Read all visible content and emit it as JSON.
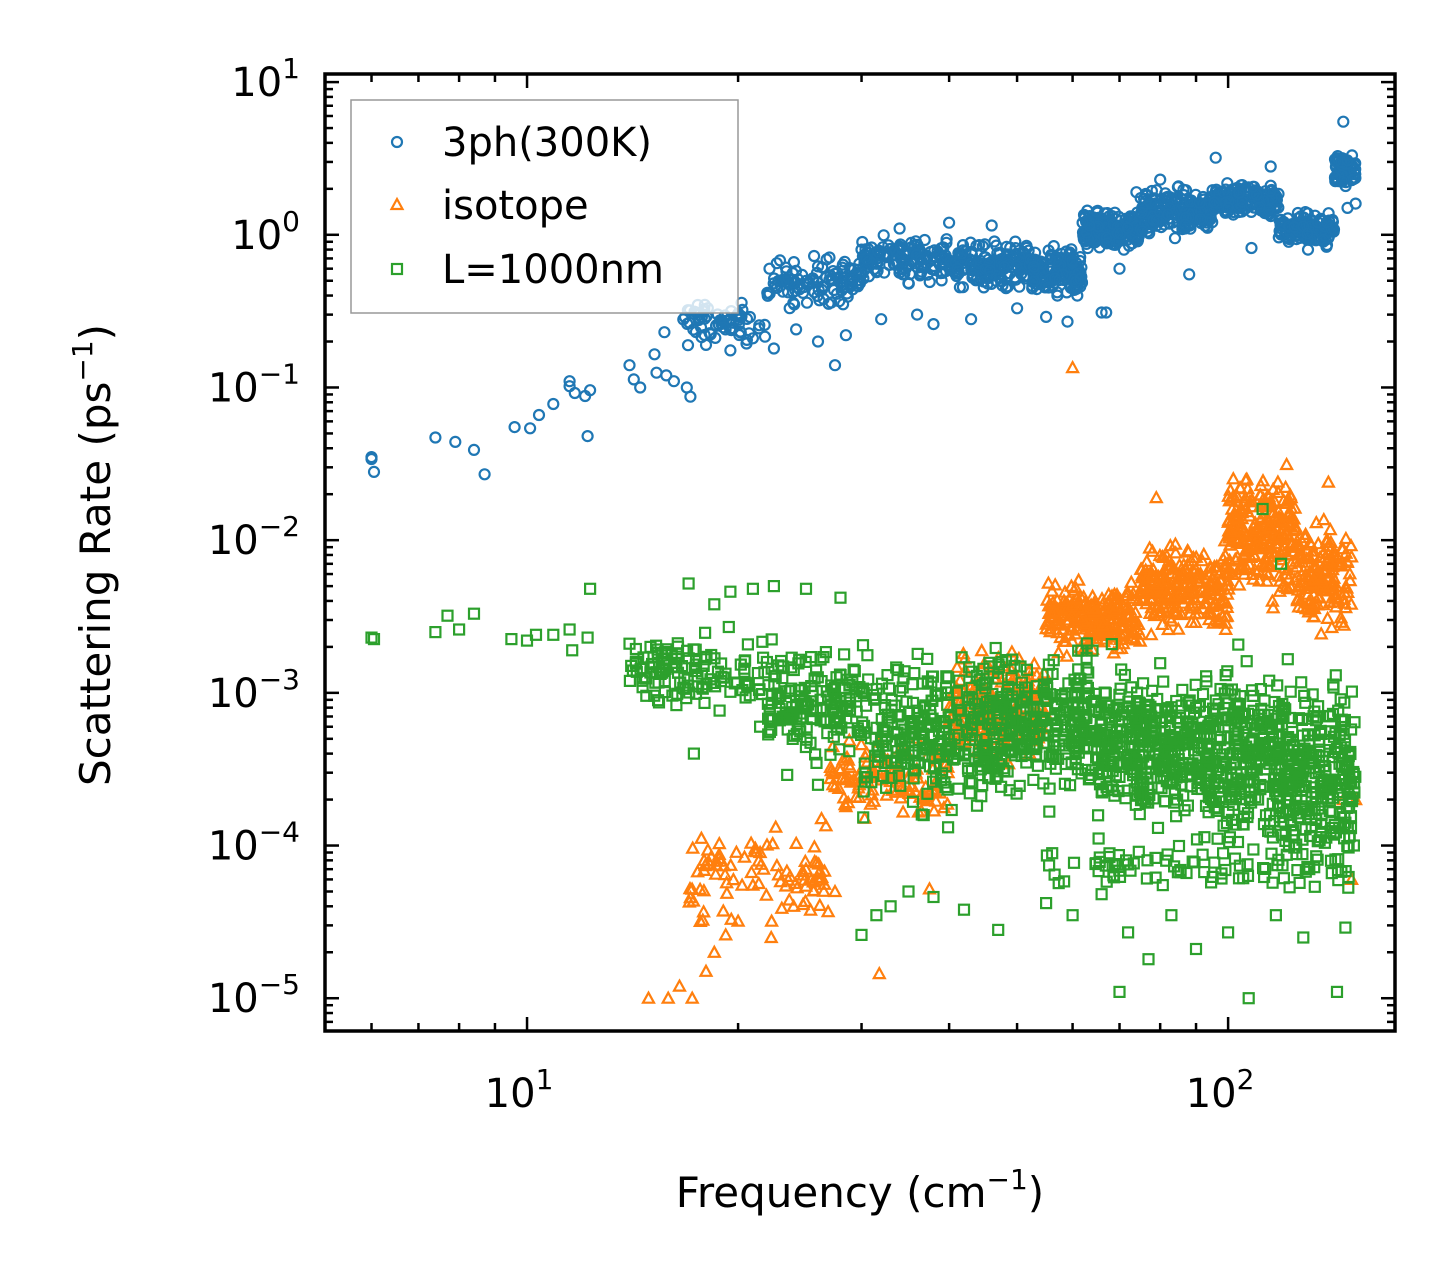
{
  "chart_data": {
    "type": "scatter",
    "title": "",
    "xlabel": "Frequency (cm",
    "xlabel_sup": "−1",
    "xlabel_end": ")",
    "ylabel": "Scattering Rate (ps",
    "ylabel_sup": "−1",
    "ylabel_end": ")",
    "xscale": "log",
    "yscale": "log",
    "xlim": [
      5.15,
      173
    ],
    "ylim": [
      6.1e-06,
      11.3
    ],
    "grid": false,
    "legend_position": "top-left",
    "x_ticks": [
      {
        "value": 10,
        "base": "10",
        "exp": "1"
      },
      {
        "value": 100,
        "base": "10",
        "exp": "2"
      }
    ],
    "y_ticks": [
      {
        "value": 10,
        "base": "10",
        "exp": "1"
      },
      {
        "value": 1,
        "base": "10",
        "exp": "0"
      },
      {
        "value": 0.1,
        "base": "10",
        "exp": "−1"
      },
      {
        "value": 0.01,
        "base": "10",
        "exp": "−2"
      },
      {
        "value": 0.001,
        "base": "10",
        "exp": "−3"
      },
      {
        "value": 0.0001,
        "base": "10",
        "exp": "−4"
      },
      {
        "value": 1e-05,
        "base": "10",
        "exp": "−5"
      }
    ],
    "series": [
      {
        "name": "3ph(300K)",
        "marker": "circle",
        "color": "#1f77b4",
        "points": [
          [
            6.0,
            0.035
          ],
          [
            6.0,
            0.034
          ],
          [
            6.05,
            0.028
          ],
          [
            7.4,
            0.047
          ],
          [
            7.9,
            0.044
          ],
          [
            8.4,
            0.039
          ],
          [
            8.7,
            0.027
          ],
          [
            9.6,
            0.055
          ],
          [
            10.1,
            0.054
          ],
          [
            10.4,
            0.066
          ],
          [
            10.9,
            0.078
          ],
          [
            11.5,
            0.11
          ],
          [
            11.5,
            0.102
          ],
          [
            11.7,
            0.092
          ],
          [
            12.1,
            0.088
          ],
          [
            12.3,
            0.096
          ],
          [
            12.2,
            0.048
          ],
          [
            14.0,
            0.14
          ],
          [
            14.2,
            0.113
          ],
          [
            14.5,
            0.1
          ],
          [
            15.2,
            0.165
          ],
          [
            15.3,
            0.125
          ],
          [
            15.8,
            0.12
          ],
          [
            16.2,
            0.11
          ],
          [
            15.7,
            0.23
          ],
          [
            16.9,
            0.1
          ],
          [
            17.1,
            0.087
          ],
          [
            18.0,
            0.19
          ],
          [
            19.5,
            0.175
          ],
          [
            21.0,
            0.21
          ],
          [
            22.5,
            0.18
          ],
          [
            24.2,
            0.24
          ],
          [
            26.0,
            0.2
          ],
          [
            27.5,
            0.14
          ],
          [
            25.0,
            0.5
          ],
          [
            27.0,
            0.71
          ],
          [
            28.5,
            0.22
          ],
          [
            30.0,
            0.8
          ],
          [
            32.0,
            0.28
          ],
          [
            34.0,
            1.1
          ],
          [
            36.0,
            0.3
          ],
          [
            38.0,
            0.26
          ],
          [
            40.0,
            1.2
          ],
          [
            43.0,
            0.28
          ],
          [
            46.0,
            1.15
          ],
          [
            50.0,
            0.33
          ],
          [
            55.0,
            0.29
          ],
          [
            59.0,
            0.27
          ],
          [
            62.0,
            1.2
          ],
          [
            66.0,
            0.31
          ],
          [
            67.0,
            0.31
          ],
          [
            70.0,
            0.6
          ],
          [
            74.0,
            1.9
          ],
          [
            80.0,
            2.3
          ],
          [
            84.0,
            0.95
          ],
          [
            88.0,
            0.55
          ],
          [
            96.0,
            3.2
          ],
          [
            100.0,
            1.5
          ],
          [
            108.0,
            0.82
          ],
          [
            115.0,
            2.8
          ],
          [
            122.0,
            0.9
          ],
          [
            130.0,
            0.8
          ],
          [
            146.0,
            5.5
          ],
          [
            148.0,
            1.5
          ],
          [
            152.0,
            1.6
          ]
        ],
        "bands": [
          {
            "x": [
              16.5,
              22
            ],
            "y": [
              0.17,
              0.4
            ],
            "n": 70
          },
          {
            "x": [
              22,
              30
            ],
            "y": [
              0.3,
              0.8
            ],
            "n": 110
          },
          {
            "x": [
              30,
              40
            ],
            "y": [
              0.45,
              1.1
            ],
            "n": 140
          },
          {
            "x": [
              40,
              52
            ],
            "y": [
              0.4,
              1.0
            ],
            "n": 160
          },
          {
            "x": [
              52,
              62
            ],
            "y": [
              0.35,
              0.9
            ],
            "n": 160
          },
          {
            "x": [
              62,
              75
            ],
            "y": [
              0.7,
              1.6
            ],
            "n": 180
          },
          {
            "x": [
              75,
              95
            ],
            "y": [
              0.9,
              2.2
            ],
            "n": 200
          },
          {
            "x": [
              95,
              118
            ],
            "y": [
              1.2,
              2.4
            ],
            "n": 180
          },
          {
            "x": [
              118,
              142
            ],
            "y": [
              0.8,
              1.5
            ],
            "n": 140
          },
          {
            "x": [
              142,
              152
            ],
            "y": [
              1.8,
              4.0
            ],
            "n": 70
          }
        ]
      },
      {
        "name": "isotope",
        "marker": "triangle",
        "color": "#ff7f0e",
        "points": [
          [
            14.9,
            1e-05
          ],
          [
            15.9,
            1e-05
          ],
          [
            16.5,
            1.2e-05
          ],
          [
            17.2,
            1e-05
          ],
          [
            18.0,
            1.5e-05
          ],
          [
            18.5,
            2e-05
          ],
          [
            19.2,
            2.6e-05
          ],
          [
            20.0,
            3.2e-05
          ],
          [
            21.0,
            5.5e-05
          ],
          [
            21.5,
            9e-05
          ],
          [
            22.3,
            2.5e-05
          ],
          [
            23.0,
            5.8e-05
          ],
          [
            24.0,
            4e-05
          ],
          [
            25.0,
            7e-05
          ],
          [
            26.3,
            0.00015
          ],
          [
            27.5,
            5e-05
          ],
          [
            28.5,
            0.00018
          ],
          [
            31.8,
            1.45e-05
          ],
          [
            37.5,
            5.2e-05
          ],
          [
            60.0,
            0.135
          ],
          [
            79.0,
            0.019
          ],
          [
            123.0,
            0.019
          ],
          [
            139.0,
            0.024
          ],
          [
            146.0,
            0.0002
          ],
          [
            150.0,
            6e-05
          ],
          [
            152.0,
            0.0002
          ]
        ],
        "bands": [
          {
            "x": [
              17,
              27
            ],
            "y": [
              2.5e-05,
              0.00016
            ],
            "n": 90
          },
          {
            "x": [
              27,
              40
            ],
            "y": [
              0.00012,
              0.0006
            ],
            "n": 120
          },
          {
            "x": [
              40,
              55
            ],
            "y": [
              0.0003,
              0.0025
            ],
            "n": 180
          },
          {
            "x": [
              55,
              75
            ],
            "y": [
              0.0015,
              0.006
            ],
            "n": 220
          },
          {
            "x": [
              75,
              100
            ],
            "y": [
              0.002,
              0.012
            ],
            "n": 240
          },
          {
            "x": [
              100,
              125
            ],
            "y": [
              0.003,
              0.04
            ],
            "n": 240
          },
          {
            "x": [
              125,
              150
            ],
            "y": [
              0.002,
              0.016
            ],
            "n": 160
          }
        ]
      },
      {
        "name": "L=1000nm",
        "marker": "square",
        "color": "#2ca02c",
        "points": [
          [
            6.0,
            0.0023
          ],
          [
            6.05,
            0.00225
          ],
          [
            7.4,
            0.0025
          ],
          [
            7.7,
            0.0032
          ],
          [
            8.0,
            0.0026
          ],
          [
            8.4,
            0.0033
          ],
          [
            9.5,
            0.00225
          ],
          [
            10.0,
            0.0022
          ],
          [
            10.3,
            0.0024
          ],
          [
            10.9,
            0.0024
          ],
          [
            11.5,
            0.0026
          ],
          [
            11.6,
            0.0019
          ],
          [
            12.2,
            0.0023
          ],
          [
            12.3,
            0.0048
          ],
          [
            14.0,
            0.0021
          ],
          [
            14.3,
            0.0016
          ],
          [
            14.6,
            0.0012
          ],
          [
            15.0,
            0.002
          ],
          [
            17.0,
            0.0052
          ],
          [
            17.3,
            0.0004
          ],
          [
            18.5,
            0.0038
          ],
          [
            19.5,
            0.0046
          ],
          [
            21.0,
            0.0048
          ],
          [
            21.5,
            0.0006
          ],
          [
            22.5,
            0.005
          ],
          [
            23.5,
            0.00029
          ],
          [
            25.0,
            0.0048
          ],
          [
            26.0,
            0.00025
          ],
          [
            28.0,
            0.0042
          ],
          [
            30.0,
            2.6e-05
          ],
          [
            31.5,
            3.5e-05
          ],
          [
            33.0,
            4e-05
          ],
          [
            35.0,
            5e-05
          ],
          [
            38.0,
            4.6e-05
          ],
          [
            42.0,
            3.8e-05
          ],
          [
            47.0,
            2.8e-05
          ],
          [
            55.0,
            4.2e-05
          ],
          [
            60.0,
            3.5e-05
          ],
          [
            66.0,
            4.8e-05
          ],
          [
            70.0,
            1.1e-05
          ],
          [
            72.0,
            2.7e-05
          ],
          [
            77.0,
            1.8e-05
          ],
          [
            83.0,
            3.5e-05
          ],
          [
            90.0,
            2.1e-05
          ],
          [
            100.0,
            2.7e-05
          ],
          [
            107.0,
            1e-05
          ],
          [
            117.0,
            3.5e-05
          ],
          [
            128.0,
            2.5e-05
          ],
          [
            143.0,
            1.1e-05
          ],
          [
            147.0,
            2.9e-05
          ],
          [
            112.0,
            0.016
          ],
          [
            119.0,
            0.007
          ]
        ],
        "bands": [
          {
            "x": [
              14,
              22
            ],
            "y": [
              0.0006,
              0.003
            ],
            "n": 120
          },
          {
            "x": [
              22,
              30
            ],
            "y": [
              0.0003,
              0.0026
            ],
            "n": 150
          },
          {
            "x": [
              30,
              45
            ],
            "y": [
              0.00012,
              0.0025
            ],
            "n": 260
          },
          {
            "x": [
              45,
              65
            ],
            "y": [
              0.00015,
              0.0025
            ],
            "n": 320
          },
          {
            "x": [
              65,
              90
            ],
            "y": [
              0.0001,
              0.0022
            ],
            "n": 340
          },
          {
            "x": [
              90,
              120
            ],
            "y": [
              7e-05,
              0.0022
            ],
            "n": 320
          },
          {
            "x": [
              120,
              152
            ],
            "y": [
              5e-05,
              0.002
            ],
            "n": 260
          },
          {
            "x": [
              55,
              150
            ],
            "y": [
              4e-05,
              0.00012
            ],
            "n": 90
          }
        ]
      }
    ]
  }
}
